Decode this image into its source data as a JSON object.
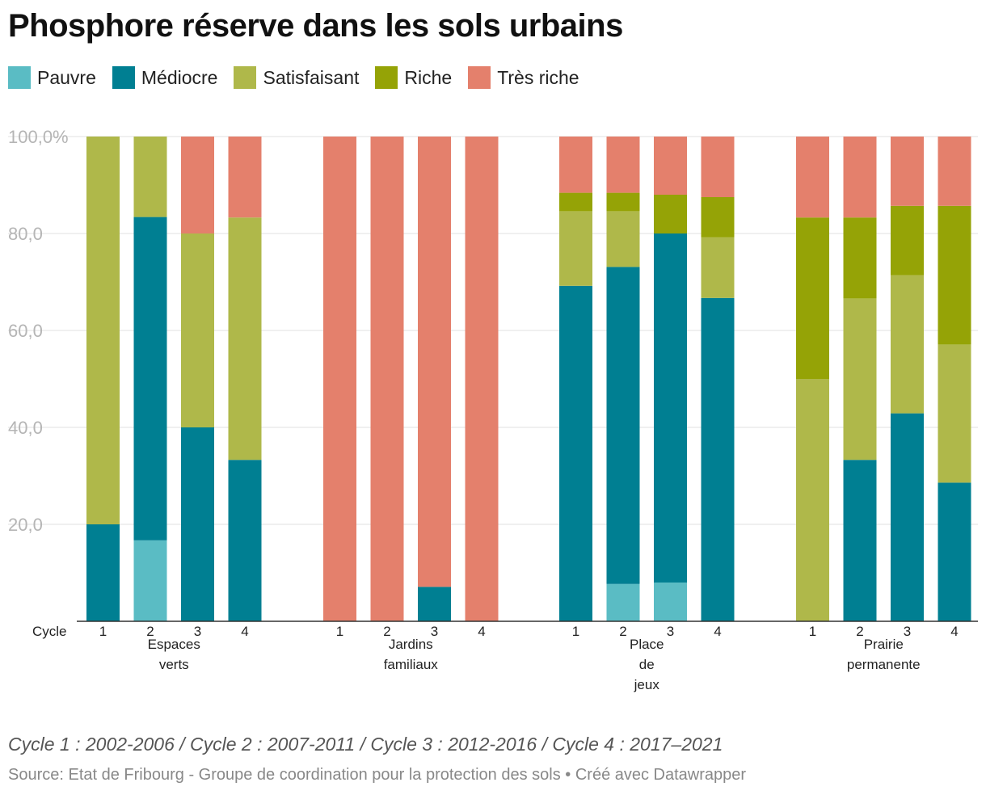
{
  "title": "Phosphore réserve dans les sols urbains",
  "note": "Cycle 1 : 2002-2006 / Cycle 2 : 2007-2011 / Cycle 3 : 2012-2016 / Cycle 4 : 2017–2021",
  "source": "Source: Etat de Fribourg - Groupe de coordination pour la protection des sols • Créé avec Datawrapper",
  "legend": [
    {
      "name": "Pauvre",
      "color": "#5abcc4"
    },
    {
      "name": "Médiocre",
      "color": "#007f92"
    },
    {
      "name": "Satisfaisant",
      "color": "#afb84a"
    },
    {
      "name": "Riche",
      "color": "#95a306"
    },
    {
      "name": "Très riche",
      "color": "#e4806c"
    }
  ],
  "chart_data": {
    "type": "bar",
    "stacked": true,
    "ylim": [
      0,
      100
    ],
    "yticks": [
      20,
      40,
      60,
      80,
      100
    ],
    "ytick_labels": [
      "20,0",
      "40,0",
      "60,0",
      "80,0",
      "100,0%"
    ],
    "x_axis_label": "Cycle",
    "series_order": [
      "Pauvre",
      "Médiocre",
      "Satisfaisant",
      "Riche",
      "Très riche"
    ],
    "groups": [
      {
        "label_lines": [
          "Espaces",
          "verts"
        ],
        "bars": [
          {
            "cycle": "1",
            "values": [
              0,
              20,
              80,
              0,
              0
            ]
          },
          {
            "cycle": "2",
            "values": [
              16.7,
              66.7,
              16.6,
              0,
              0
            ]
          },
          {
            "cycle": "3",
            "values": [
              0,
              40,
              40,
              0,
              20
            ]
          },
          {
            "cycle": "4",
            "values": [
              0,
              33.3,
              50,
              0,
              16.7
            ]
          }
        ]
      },
      {
        "label_lines": [
          "Jardins",
          "familiaux"
        ],
        "bars": [
          {
            "cycle": "1",
            "values": [
              0,
              0,
              0,
              0,
              100
            ]
          },
          {
            "cycle": "2",
            "values": [
              0,
              0,
              0,
              0,
              100
            ]
          },
          {
            "cycle": "3",
            "values": [
              0,
              7.1,
              0,
              0,
              92.9
            ]
          },
          {
            "cycle": "4",
            "values": [
              0,
              0,
              0,
              0,
              100
            ]
          }
        ]
      },
      {
        "label_lines": [
          "Place",
          "de",
          "jeux"
        ],
        "bars": [
          {
            "cycle": "1",
            "values": [
              0,
              69.2,
              15.4,
              3.8,
              11.6
            ]
          },
          {
            "cycle": "2",
            "values": [
              7.7,
              65.4,
              11.5,
              3.8,
              11.6
            ]
          },
          {
            "cycle": "3",
            "values": [
              8,
              72,
              0,
              8,
              12
            ]
          },
          {
            "cycle": "4",
            "values": [
              0,
              66.7,
              12.5,
              8.3,
              12.5
            ]
          }
        ]
      },
      {
        "label_lines": [
          "Prairie",
          "permanente"
        ],
        "bars": [
          {
            "cycle": "1",
            "values": [
              0,
              0,
              50,
              33.3,
              16.7
            ]
          },
          {
            "cycle": "2",
            "values": [
              0,
              33.3,
              33.3,
              16.7,
              16.7
            ]
          },
          {
            "cycle": "3",
            "values": [
              0,
              42.9,
              28.5,
              14.3,
              14.3
            ]
          },
          {
            "cycle": "4",
            "values": [
              0,
              28.6,
              28.5,
              28.6,
              14.3
            ]
          }
        ]
      }
    ]
  }
}
